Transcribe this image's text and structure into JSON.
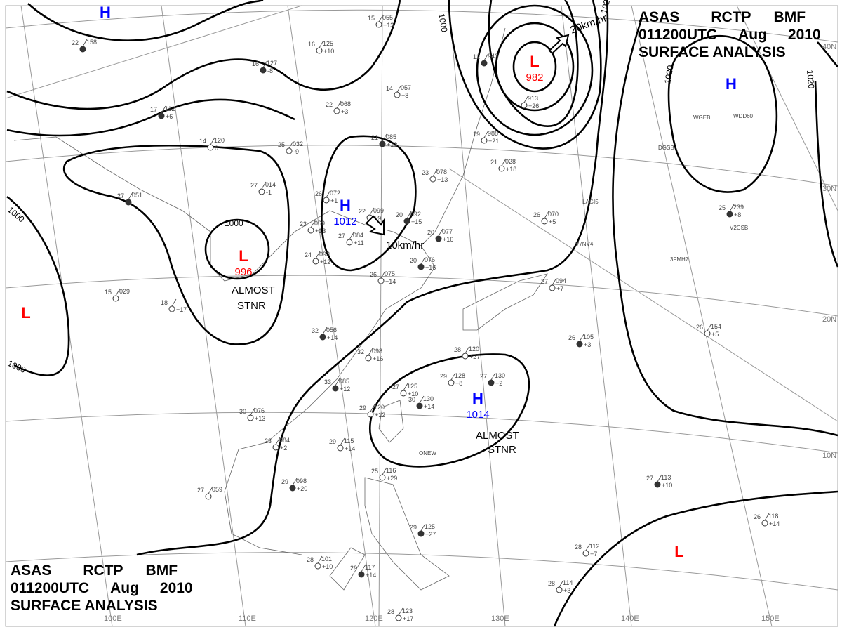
{
  "title_top": {
    "line1": [
      "ASAS",
      "RCTP",
      "BMF"
    ],
    "line2": [
      "011200UTC",
      "Aug",
      "2010"
    ],
    "line3": "SURFACE  ANALYSIS"
  },
  "title_bottom": {
    "line1": [
      "ASAS",
      "RCTP",
      "BMF"
    ],
    "line2": [
      "011200UTC",
      "Aug",
      "2010"
    ],
    "line3": "SURFACE  ANALYSIS"
  },
  "colors": {
    "high": "#0000ff",
    "low": "#ff0000",
    "isobar": "#000000",
    "grid": "#999999"
  },
  "pressure_centers": [
    {
      "type": "H",
      "value": "",
      "color": "#0000ff"
    },
    {
      "type": "L",
      "value": "982",
      "color": "#ff0000"
    },
    {
      "type": "H",
      "value": "",
      "color": "#0000ff"
    },
    {
      "type": "H",
      "value": "1012",
      "color": "#0000ff"
    },
    {
      "type": "L",
      "value": "996",
      "color": "#ff0000"
    },
    {
      "type": "L",
      "value": "",
      "color": "#ff0000"
    },
    {
      "type": "H",
      "value": "1014",
      "color": "#0000ff"
    },
    {
      "type": "L",
      "value": "",
      "color": "#ff0000"
    }
  ],
  "annotations": {
    "almost_stnr_1": [
      "ALMOST",
      "STNR"
    ],
    "almost_stnr_2": [
      "ALMOST",
      "STNR"
    ],
    "speed_1": "20km/hr",
    "speed_2": "10km/hr"
  },
  "isobar_labels": [
    "1000",
    "1000",
    "1000",
    "1000",
    "1020",
    "1020",
    "1020"
  ],
  "latitude_labels": [
    "40N",
    "30N",
    "20N",
    "10N"
  ],
  "longitude_labels": [
    "100E",
    "110E",
    "120E",
    "130E",
    "140E",
    "150E"
  ],
  "ship_ids": [
    "WGEB",
    "WDD60",
    "DGSB",
    "LAGI5",
    "V7NV4",
    "V2CSB",
    "3FMH7",
    "ONEW"
  ],
  "stations": [
    {
      "t": "22",
      "p": "158",
      "d": ""
    },
    {
      "t": "16",
      "p": "125",
      "d": "+10"
    },
    {
      "t": "15",
      "p": "055",
      "d": "+13"
    },
    {
      "t": "16",
      "p": "127",
      "d": "-8"
    },
    {
      "t": "22",
      "p": "068",
      "d": "+3"
    },
    {
      "t": "14",
      "p": "057",
      "d": "+8"
    },
    {
      "t": "17",
      "p": "112",
      "d": "+6"
    },
    {
      "t": "14",
      "p": "120",
      "d": "0"
    },
    {
      "t": "25",
      "p": "032",
      "d": "-9"
    },
    {
      "t": "21",
      "p": "085",
      "d": "+13"
    },
    {
      "t": "23",
      "p": "078",
      "d": "+13"
    },
    {
      "t": "27",
      "p": "014",
      "d": "-1"
    },
    {
      "t": "27",
      "p": "051",
      "d": ""
    },
    {
      "t": "26",
      "p": "072",
      "d": "+1"
    },
    {
      "t": "22",
      "p": "099",
      "d": "+9"
    },
    {
      "t": "20",
      "p": "092",
      "d": "+15"
    },
    {
      "t": "23",
      "p": "069",
      "d": "+13"
    },
    {
      "t": "27",
      "p": "084",
      "d": "+11"
    },
    {
      "t": "20",
      "p": "077",
      "d": "+16"
    },
    {
      "t": "24",
      "p": "093",
      "d": "+12"
    },
    {
      "t": "26",
      "p": "075",
      "d": "+14"
    },
    {
      "t": "20",
      "p": "076",
      "d": "+16"
    },
    {
      "t": "15",
      "p": "029",
      "d": ""
    },
    {
      "t": "18",
      "p": "",
      "d": "+17"
    },
    {
      "t": "32",
      "p": "056",
      "d": "+14"
    },
    {
      "t": "32",
      "p": "098",
      "d": "+16"
    },
    {
      "t": "28",
      "p": "120",
      "d": "+27"
    },
    {
      "t": "33",
      "p": "085",
      "d": "+12"
    },
    {
      "t": "27",
      "p": "125",
      "d": "+10"
    },
    {
      "t": "29",
      "p": "128",
      "d": "+8"
    },
    {
      "t": "27",
      "p": "130",
      "d": "+2"
    },
    {
      "t": "30",
      "p": "076",
      "d": "+13"
    },
    {
      "t": "29",
      "p": "120",
      "d": "+12"
    },
    {
      "t": "30",
      "p": "130",
      "d": "+14"
    },
    {
      "t": "29",
      "p": "115",
      "d": "+14"
    },
    {
      "t": "23",
      "p": "084",
      "d": "+2"
    },
    {
      "t": "29",
      "p": "098",
      "d": "+20"
    },
    {
      "t": "27",
      "p": "059",
      "d": ""
    },
    {
      "t": "28",
      "p": "101",
      "d": "+10"
    },
    {
      "t": "29",
      "p": "117",
      "d": "+14"
    },
    {
      "t": "28",
      "p": "123",
      "d": "+17"
    },
    {
      "t": "25",
      "p": "116",
      "d": "+29"
    },
    {
      "t": "29",
      "p": "125",
      "d": "+27"
    },
    {
      "t": "28",
      "p": "112",
      "d": "+7"
    },
    {
      "t": "28",
      "p": "114",
      "d": "+3"
    },
    {
      "t": "27",
      "p": "113",
      "d": "+10"
    },
    {
      "t": "26",
      "p": "118",
      "d": "+14"
    },
    {
      "t": "26",
      "p": "154",
      "d": "+5"
    },
    {
      "t": "26",
      "p": "105",
      "d": "+3"
    },
    {
      "t": "26",
      "p": "070",
      "d": "+5"
    },
    {
      "t": "27",
      "p": "094",
      "d": "+7"
    },
    {
      "t": "25",
      "p": "239",
      "d": "+8"
    },
    {
      "t": "19",
      "p": "988",
      "d": "+21"
    },
    {
      "t": "21",
      "p": "028",
      "d": "+18"
    },
    {
      "t": "12",
      "p": "943",
      "d": ""
    },
    {
      "t": "",
      "p": "913",
      "d": "+26"
    }
  ]
}
